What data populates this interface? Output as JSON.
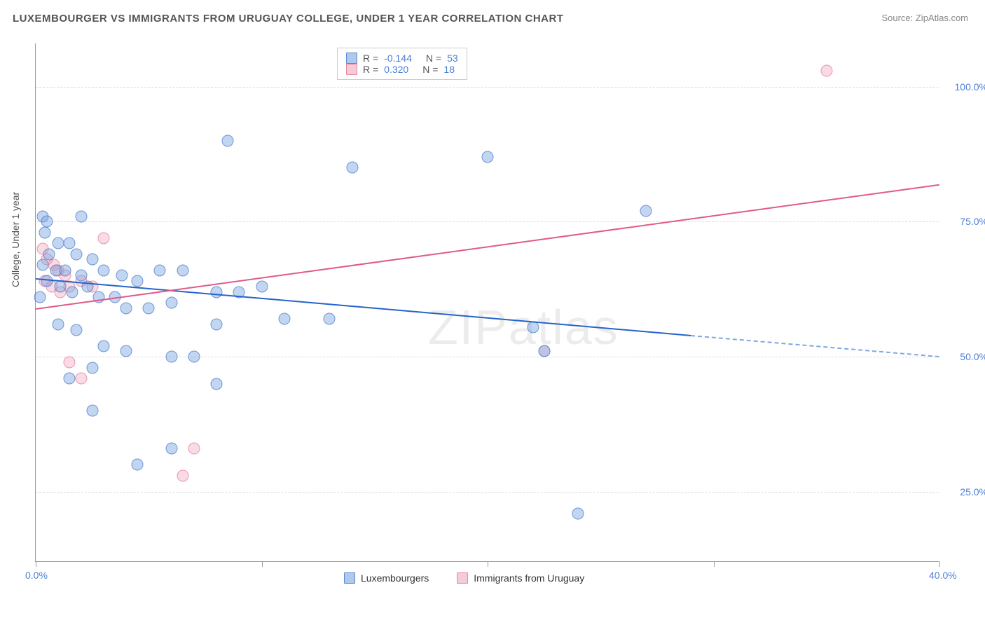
{
  "title": "LUXEMBOURGER VS IMMIGRANTS FROM URUGUAY COLLEGE, UNDER 1 YEAR CORRELATION CHART",
  "source": "Source: ZipAtlas.com",
  "y_axis_label": "College, Under 1 year",
  "watermark": "ZIPatlas",
  "chart": {
    "type": "scatter",
    "background_color": "#ffffff",
    "grid_color": "#dddddd",
    "axis_color": "#999999",
    "tick_label_color": "#4a7fd6",
    "title_fontsize": 15,
    "label_fontsize": 14,
    "xlim": [
      0,
      40
    ],
    "ylim": [
      12,
      108
    ],
    "x_ticks": [
      0,
      10,
      20,
      30,
      40
    ],
    "x_tick_labels": [
      "0.0%",
      "",
      "",
      "",
      "40.0%"
    ],
    "y_ticks": [
      25,
      50,
      75,
      100
    ],
    "y_tick_labels": [
      "25.0%",
      "50.0%",
      "75.0%",
      "100.0%"
    ],
    "marker_size": 17
  },
  "legend_top": {
    "rows": [
      {
        "sw": "blue",
        "r_label": "R =",
        "r_val": "-0.144",
        "n_label": "N =",
        "n_val": "53"
      },
      {
        "sw": "pink",
        "r_label": "R =",
        "r_val": "0.320",
        "n_label": "N =",
        "n_val": "18"
      }
    ]
  },
  "legend_bottom": {
    "items": [
      {
        "sw": "blue",
        "label": "Luxembourgers"
      },
      {
        "sw": "pink",
        "label": "Immigrants from Uruguay"
      }
    ]
  },
  "series_blue": {
    "color_fill": "rgba(120,165,225,0.45)",
    "color_stroke": "rgba(70,120,200,0.7)",
    "points": [
      [
        0.3,
        76
      ],
      [
        0.5,
        75
      ],
      [
        2.0,
        76
      ],
      [
        0.4,
        73
      ],
      [
        1.0,
        71
      ],
      [
        1.5,
        71
      ],
      [
        0.6,
        69
      ],
      [
        1.8,
        69
      ],
      [
        2.5,
        68
      ],
      [
        0.3,
        67
      ],
      [
        0.9,
        66
      ],
      [
        1.3,
        66
      ],
      [
        2.0,
        65
      ],
      [
        3.0,
        66
      ],
      [
        3.8,
        65
      ],
      [
        0.5,
        64
      ],
      [
        1.1,
        63
      ],
      [
        1.6,
        62
      ],
      [
        2.3,
        63
      ],
      [
        0.2,
        61
      ],
      [
        4.5,
        64
      ],
      [
        5.5,
        66
      ],
      [
        6.5,
        66
      ],
      [
        2.8,
        61
      ],
      [
        3.5,
        61
      ],
      [
        4.0,
        59
      ],
      [
        5.0,
        59
      ],
      [
        6.0,
        60
      ],
      [
        8.0,
        62
      ],
      [
        9.0,
        62
      ],
      [
        10.0,
        63
      ],
      [
        1.0,
        56
      ],
      [
        1.8,
        55
      ],
      [
        3.0,
        52
      ],
      [
        4.0,
        51
      ],
      [
        6.0,
        50
      ],
      [
        7.0,
        50
      ],
      [
        8.0,
        56
      ],
      [
        11.0,
        57
      ],
      [
        13.0,
        57
      ],
      [
        1.5,
        46
      ],
      [
        2.5,
        48
      ],
      [
        8.0,
        45
      ],
      [
        8.5,
        90
      ],
      [
        14.0,
        85
      ],
      [
        20.0,
        87
      ],
      [
        27.0,
        77
      ],
      [
        24.0,
        21
      ],
      [
        2.5,
        40
      ],
      [
        4.5,
        30
      ],
      [
        6.0,
        33
      ],
      [
        22.0,
        55.5
      ],
      [
        22.5,
        51
      ]
    ],
    "trend": {
      "x1": 0,
      "y1": 64.5,
      "x2": 29,
      "y2": 54,
      "x2_dashed": 40,
      "y2_dashed": 50.1
    }
  },
  "series_pink": {
    "color_fill": "rgba(240,150,175,0.35)",
    "color_stroke": "rgba(225,105,140,0.6)",
    "points": [
      [
        0.3,
        70
      ],
      [
        0.5,
        68
      ],
      [
        0.8,
        67
      ],
      [
        1.0,
        66
      ],
      [
        1.3,
        65
      ],
      [
        0.4,
        64
      ],
      [
        0.7,
        63
      ],
      [
        1.1,
        62
      ],
      [
        1.5,
        63
      ],
      [
        2.0,
        64
      ],
      [
        2.5,
        63
      ],
      [
        3.0,
        72
      ],
      [
        1.5,
        49
      ],
      [
        2.0,
        46
      ],
      [
        7.0,
        33
      ],
      [
        6.5,
        28
      ],
      [
        35.0,
        103
      ],
      [
        22.5,
        51
      ]
    ],
    "trend": {
      "x1": 0,
      "y1": 59,
      "x2": 40,
      "y2": 82
    }
  }
}
